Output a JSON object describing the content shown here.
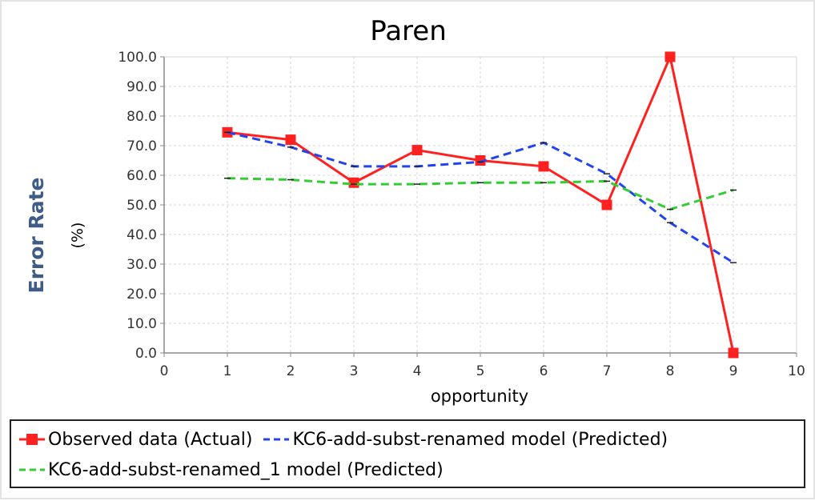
{
  "chart_data": {
    "type": "line",
    "title": "Paren",
    "xlabel": "opportunity",
    "ylabel": "Error Rate",
    "yunit": "(%)",
    "xlim": [
      0,
      10
    ],
    "ylim": [
      0,
      100
    ],
    "x_ticks": [
      0,
      1,
      2,
      3,
      4,
      5,
      6,
      7,
      8,
      9,
      10
    ],
    "y_ticks": [
      "0.0",
      "10.0",
      "20.0",
      "30.0",
      "40.0",
      "50.0",
      "60.0",
      "70.0",
      "80.0",
      "90.0",
      "100.0"
    ],
    "grid": true,
    "legend_position": "bottom",
    "series": [
      {
        "name": "Observed data (Actual)",
        "color": "#ff2020",
        "style": "solid-square-markers",
        "x": [
          1,
          2,
          3,
          4,
          5,
          6,
          7,
          8,
          9
        ],
        "y": [
          74.5,
          72,
          57.5,
          68.5,
          65,
          63,
          50,
          100,
          0
        ]
      },
      {
        "name": "KC6-add-subst-renamed model (Predicted)",
        "color": "#2244ee",
        "style": "dashed",
        "x": [
          1,
          2,
          3,
          4,
          5,
          6,
          7,
          8,
          9
        ],
        "y": [
          74.5,
          69.5,
          63,
          63,
          64.5,
          71,
          60.5,
          44,
          30.5
        ]
      },
      {
        "name": "KC6-add-subst-renamed_1 model (Predicted)",
        "color": "#33cc33",
        "style": "dashed",
        "x": [
          1,
          2,
          3,
          4,
          5,
          6,
          7,
          8,
          9
        ],
        "y": [
          59,
          58.5,
          57,
          57,
          57.5,
          57.5,
          58,
          48.5,
          55
        ]
      }
    ]
  }
}
